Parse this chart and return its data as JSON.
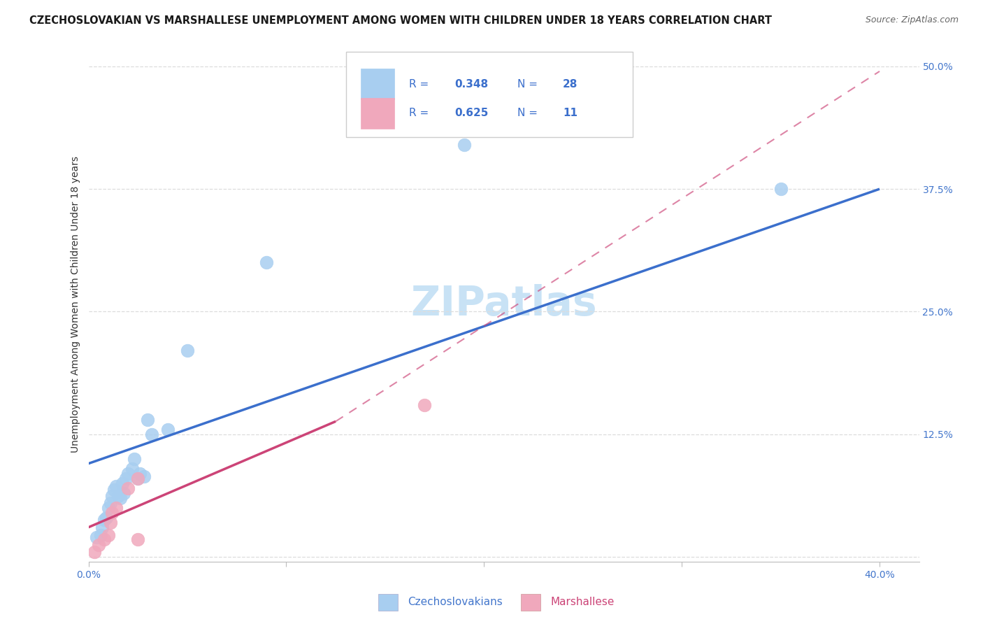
{
  "title": "CZECHOSLOVAKIAN VS MARSHALLESE UNEMPLOYMENT AMONG WOMEN WITH CHILDREN UNDER 18 YEARS CORRELATION CHART",
  "source": "Source: ZipAtlas.com",
  "ylabel": "Unemployment Among Women with Children Under 18 years",
  "watermark": "ZIPatlas",
  "xlim": [
    0.0,
    0.42
  ],
  "ylim": [
    -0.005,
    0.52
  ],
  "xtick_vals": [
    0.0,
    0.1,
    0.2,
    0.3,
    0.4
  ],
  "xtick_labels": [
    "0.0%",
    "",
    "",
    "",
    "40.0%"
  ],
  "ytick_vals": [
    0.0,
    0.125,
    0.25,
    0.375,
    0.5
  ],
  "ytick_labels": [
    "",
    "12.5%",
    "25.0%",
    "37.5%",
    "50.0%"
  ],
  "czech_R": "0.348",
  "czech_N": "28",
  "marsh_R": "0.625",
  "marsh_N": "11",
  "czech_color": "#A8CEF0",
  "marsh_color": "#F0A8BC",
  "czech_line_color": "#3B6FCC",
  "marsh_line_color": "#CC4477",
  "legend_czech": "Czechoslovakians",
  "legend_marsh": "Marshallese",
  "legend_text_color": "#3B6FCC",
  "czech_x": [
    0.004,
    0.006,
    0.007,
    0.008,
    0.009,
    0.01,
    0.011,
    0.012,
    0.013,
    0.014,
    0.015,
    0.016,
    0.017,
    0.018,
    0.019,
    0.02,
    0.022,
    0.023,
    0.025,
    0.026,
    0.028,
    0.03,
    0.032,
    0.04,
    0.05,
    0.09,
    0.19,
    0.35
  ],
  "czech_y": [
    0.02,
    0.022,
    0.03,
    0.038,
    0.04,
    0.05,
    0.055,
    0.062,
    0.068,
    0.072,
    0.062,
    0.06,
    0.075,
    0.065,
    0.08,
    0.085,
    0.09,
    0.1,
    0.08,
    0.085,
    0.082,
    0.14,
    0.125,
    0.13,
    0.21,
    0.3,
    0.42,
    0.375
  ],
  "marsh_x": [
    0.003,
    0.005,
    0.008,
    0.01,
    0.011,
    0.012,
    0.014,
    0.02,
    0.025,
    0.025,
    0.17
  ],
  "marsh_y": [
    0.005,
    0.012,
    0.018,
    0.022,
    0.035,
    0.045,
    0.05,
    0.07,
    0.018,
    0.08,
    0.155
  ],
  "czech_trend": [
    0.0,
    0.4,
    0.095,
    0.375
  ],
  "marsh_solid": [
    0.0,
    0.125,
    0.03,
    0.138
  ],
  "marsh_dash": [
    0.125,
    0.4,
    0.138,
    0.495
  ],
  "bg_color": "#FFFFFF",
  "grid_color": "#DDDDDD",
  "tick_color": "#4477CC",
  "title_fs": 10.5,
  "source_fs": 9,
  "ylabel_fs": 10,
  "tick_fs": 10,
  "watermark_fs": 42,
  "watermark_color": "#C8E2F5"
}
